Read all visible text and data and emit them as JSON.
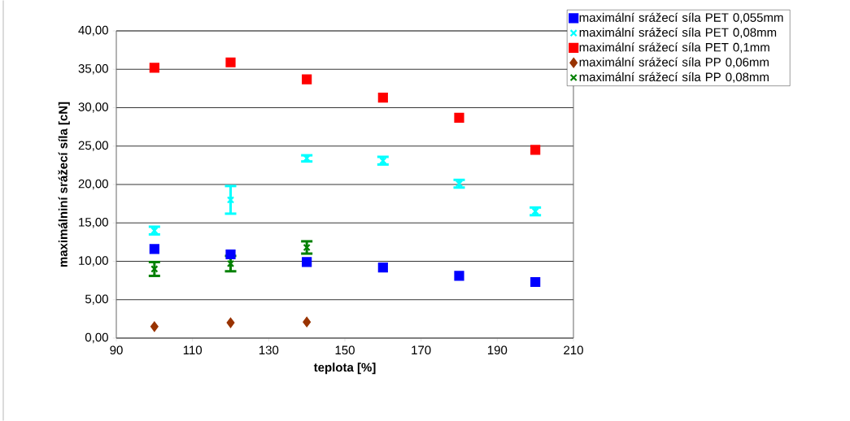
{
  "chart_data": {
    "type": "scatter",
    "xlabel": "teplota [%]",
    "ylabel": "maximálniní srážecí síla [cN]",
    "x": [
      100,
      120,
      140,
      160,
      180,
      200
    ],
    "series": [
      {
        "name": "maximální srážecí síla PET 0,055mm",
        "color": "#0000ff",
        "marker": "square",
        "values": [
          11.6,
          10.9,
          9.9,
          9.2,
          8.1,
          7.3
        ]
      },
      {
        "name": "maximální srážecí síla PET 0,08mm",
        "color": "#00ffff",
        "marker": "cross",
        "values": [
          14.0,
          18.0,
          23.4,
          23.1,
          20.1,
          16.5
        ],
        "errors": [
          0.5,
          1.8,
          0.4,
          0.5,
          0.5,
          0.5
        ]
      },
      {
        "name": "maximální srážecí síla PET 0,1mm",
        "color": "#ff0000",
        "marker": "square",
        "values": [
          35.2,
          35.9,
          33.7,
          31.3,
          28.7,
          24.5
        ]
      },
      {
        "name": "maximální srážecí síla PP 0,06mm",
        "color": "#993300",
        "marker": "diamond",
        "values": [
          1.5,
          2.0,
          2.1,
          null,
          null,
          null
        ]
      },
      {
        "name": "maximální srážecí síla PP 0,08mm",
        "color": "#008000",
        "marker": "cross",
        "values": [
          9.0,
          9.7,
          11.8,
          null,
          null,
          null
        ],
        "errors": [
          0.9,
          1.0,
          0.8,
          null,
          null,
          null
        ]
      }
    ],
    "xlim": [
      90,
      210
    ],
    "xticks": [
      90,
      110,
      130,
      150,
      170,
      190,
      210
    ],
    "ylim": [
      0,
      40
    ],
    "yticks": [
      {
        "value": 0,
        "label": "0,00"
      },
      {
        "value": 5,
        "label": "5,00"
      },
      {
        "value": 10,
        "label": "10,00"
      },
      {
        "value": 15,
        "label": "15,00"
      },
      {
        "value": 20,
        "label": "20,00"
      },
      {
        "value": 25,
        "label": "25,00"
      },
      {
        "value": 30,
        "label": "30,00"
      },
      {
        "value": 35,
        "label": "35,00"
      },
      {
        "value": 40,
        "label": "40,00"
      }
    ],
    "grid": "y",
    "legend": "right"
  }
}
